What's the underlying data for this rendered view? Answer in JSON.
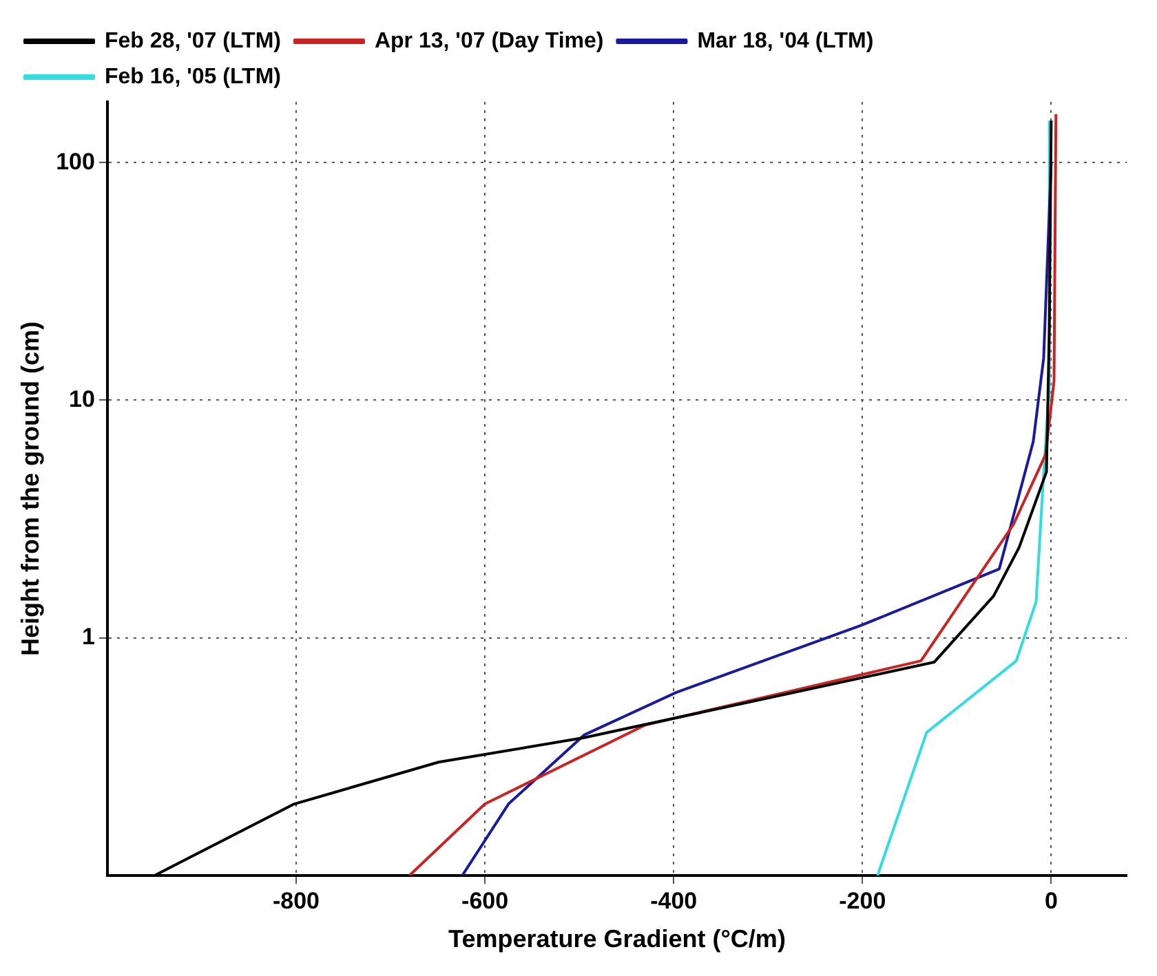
{
  "chart_data": {
    "type": "line",
    "xlabel": "Temperature Gradient (°C/m)",
    "ylabel": "Height from the ground (cm)",
    "log": "y",
    "grid": true,
    "legend": "top left",
    "marker": "none",
    "line_style": "solid",
    "xlim": [
      -1000,
      80
    ],
    "xticks": [
      -800,
      -600,
      -400,
      -200,
      0
    ],
    "ylim": [
      0.1,
      180
    ],
    "yticks": [
      1,
      10,
      100
    ],
    "series": [
      {
        "name": "Feb 28, '07 (LTM)",
        "color": "#000000",
        "x": [
          -950,
          -802,
          -649,
          -495,
          -124,
          -61,
          -34,
          -5,
          -2,
          0
        ],
        "values": [
          0.1,
          0.2,
          0.3,
          0.38,
          0.79,
          1.5,
          2.4,
          5,
          20,
          150
        ]
      },
      {
        "name": "Apr 13, '07 (Day Time)",
        "color": "#cc2222",
        "x": [
          -680,
          -600,
          -430,
          -138,
          -40,
          -6,
          3,
          5
        ],
        "values": [
          0.1,
          0.2,
          0.43,
          0.8,
          3,
          5.9,
          12,
          160
        ]
      },
      {
        "name": "Mar 18, '04 (LTM)",
        "color": "#1a1aa0",
        "x": [
          -624,
          -575,
          -495,
          -397,
          -201,
          -55,
          -19,
          -8,
          0
        ],
        "values": [
          0.1,
          0.2,
          0.39,
          0.59,
          1.13,
          1.95,
          6.7,
          15,
          100
        ]
      },
      {
        "name": "Feb 16, '05 (LTM)",
        "color": "#33dddd",
        "x": [
          -184,
          -132,
          -37,
          -16,
          -9,
          -3,
          -2
        ],
        "values": [
          0.1,
          0.4,
          0.8,
          1.42,
          4.2,
          10,
          150
        ]
      }
    ]
  }
}
